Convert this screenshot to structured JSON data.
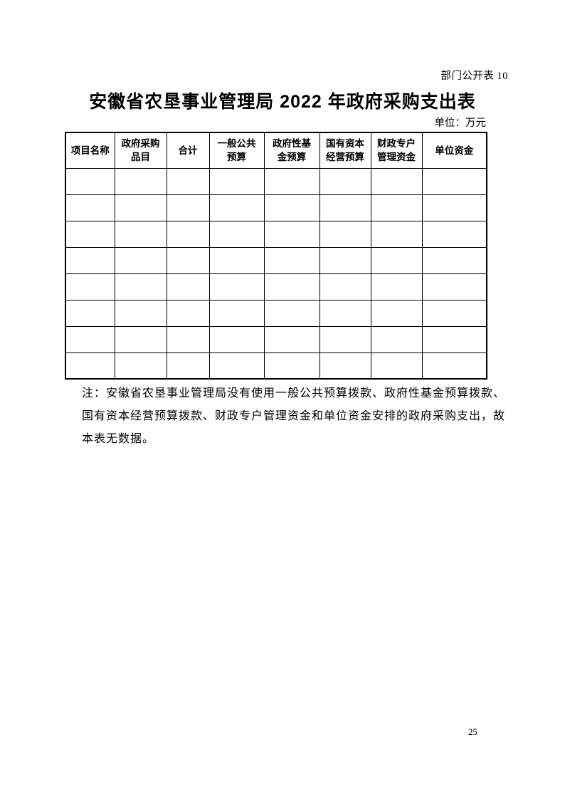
{
  "header": {
    "doc_label": "部门公开表 10",
    "title": "安徽省农垦事业管理局 2022 年政府采购支出表",
    "unit_label": "单位：万元"
  },
  "table": {
    "column_headers": [
      "项目名称",
      "政府采购\n品目",
      "合计",
      "一般公共\n预算",
      "政府性基\n金预算",
      "国有资本\n经营预算",
      "财政专户\n管理资金",
      "单位资金"
    ],
    "empty_row_count": 8,
    "cell_values": []
  },
  "note": {
    "lines": [
      "注：安徽省农垦事业管理局没有使用一般公共预算拨款、政府性基金预算拨款、",
      "国有资本经营预算拨款、财政专户管理资金和单位资金安排的政府采购支出，故",
      "本表无数据。"
    ]
  },
  "footer": {
    "page_number": "25"
  },
  "colors": {
    "text": "#000000",
    "border": "#000000",
    "background": "#ffffff"
  }
}
